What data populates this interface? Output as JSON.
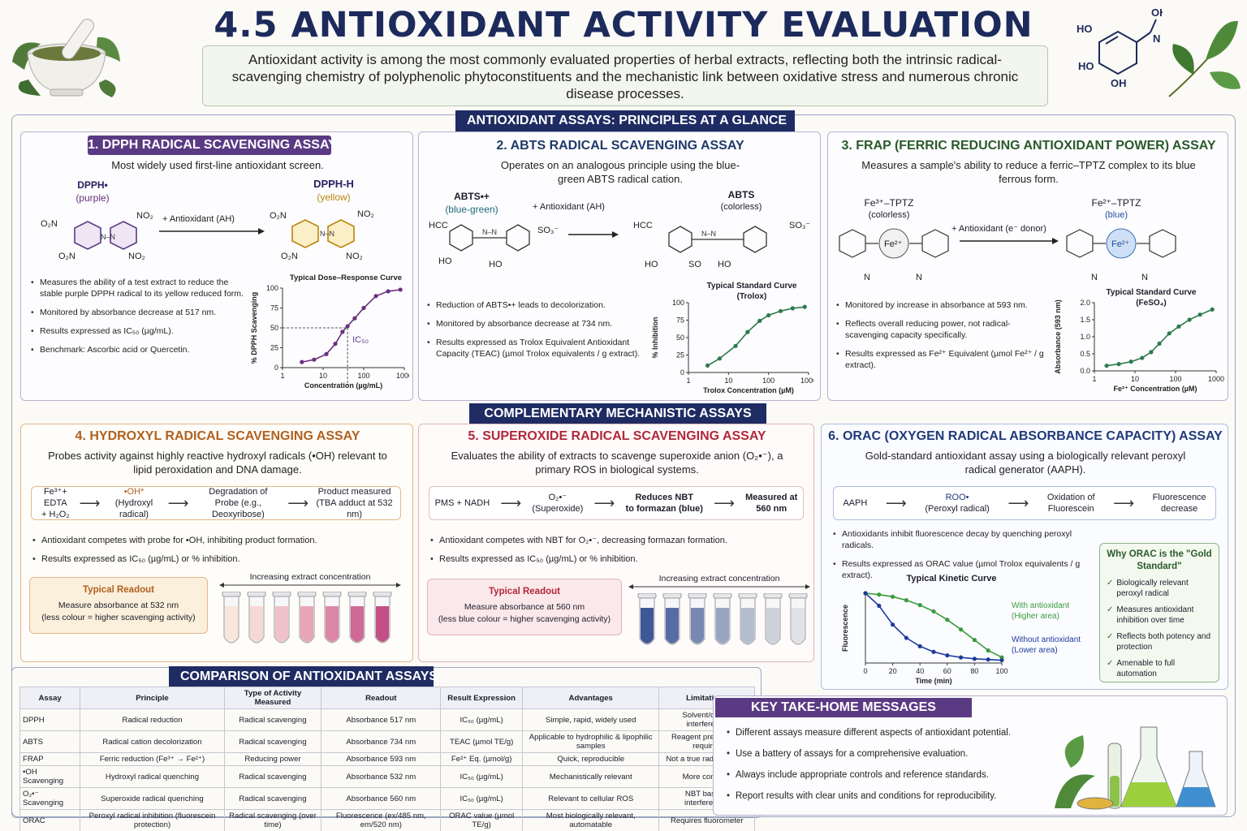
{
  "header": {
    "title": "4.5 ANTIOXIDANT ACTIVITY EVALUATION",
    "intro": "Antioxidant activity is among the most commonly evaluated properties of herbal extracts, reflecting both the intrinsic radical-scavenging chemistry of polyphenolic phytoconstituents and the mechanistic link between oxidative stress and numerous chronic disease processes.",
    "molecule_labels": [
      "OH",
      "HO",
      "N",
      "HO",
      "OH"
    ]
  },
  "sections": {
    "principles": "ANTIOXIDANT ASSAYS: PRINCIPLES AT A GLANCE",
    "complementary": "COMPLEMENTARY MECHANISTIC ASSAYS",
    "comparison": "COMPARISON OF ANTIOXIDANT ASSAYS",
    "takehome": "KEY TAKE-HOME MESSAGES"
  },
  "dpph": {
    "title": "1. DPPH RADICAL SCAVENGING ASSAY",
    "desc": "Most widely used first-line antioxidant screen.",
    "reactant": "DPPH•",
    "reactant_color": "(purple)",
    "product": "DPPH-H",
    "product_color": "(yellow)",
    "reagent": "+ Antioxidant (AH)",
    "no2": "NO₂",
    "o2n": "O₂N",
    "bullets": [
      "Measures the ability of a test extract to reduce the stable purple DPPH radical to its yellow reduced form.",
      "Monitored by absorbance decrease at 517 nm.",
      "Results expressed as IC₅₀ (µg/mL).",
      "Benchmark: Ascorbic acid or Quercetin."
    ],
    "chart_title": "Typical Dose–Response Curve",
    "ic50": "IC₅₀"
  },
  "abts": {
    "title": "2. ABTS RADICAL SCAVENGING ASSAY",
    "desc": "Operates on an analogous principle using the blue-green ABTS radical cation.",
    "reactant": "ABTS•+",
    "reactant_color": "(blue-green)",
    "product": "ABTS",
    "product_color": "(colorless)",
    "reagent": "+ Antioxidant (AH)",
    "labels": {
      "hcc": "HCC",
      "ho": "HO",
      "so3": "SO₃⁻",
      "so": "SO"
    },
    "bullets": [
      "Reduction of ABTS•+ leads to decolorization.",
      "Monitored by absorbance decrease at 734 nm.",
      "Results expressed as Trolox Equivalent Antioxidant Capacity (TEAC) (µmol Trolox equivalents / g extract)."
    ],
    "chart_title": "Typical Standard Curve",
    "chart_sub": "(Trolox)"
  },
  "frap": {
    "title": "3. FRAP (FERRIC REDUCING ANTIOXIDANT POWER) ASSAY",
    "desc": "Measures a sample's ability to reduce a ferric–TPTZ complex to its blue ferrous form.",
    "reactant": "Fe³⁺–TPTZ",
    "reactant_color": "(colorless)",
    "product": "Fe²⁺–TPTZ",
    "product_color": "(blue)",
    "reagent": "+ Antioxidant (e⁻ donor)",
    "fe": "Fe²⁺",
    "n": "N",
    "bullets": [
      "Monitored by increase in absorbance at 593 nm.",
      "Reflects overall reducing power, not radical-scavenging capacity specifically.",
      "Results expressed as Fe²⁺ Equivalent (µmol Fe²⁺ / g extract)."
    ],
    "chart_title": "Typical Standard Curve",
    "chart_sub": "(FeSO₄)"
  },
  "hydroxyl": {
    "title": "4. HYDROXYL RADICAL SCAVENGING ASSAY",
    "desc": "Probes activity against highly reactive hydroxyl radicals (•OH) relevant to lipid peroxidation and DNA damage.",
    "flow": [
      {
        "a": "Fe³⁺+ EDTA",
        "b": "+ H₂O₂"
      },
      {
        "a": "•OH*",
        "b": "(Hydroxyl radical)"
      },
      {
        "a": "Degradation of",
        "b": "Probe (e.g., Deoxyribose)"
      },
      {
        "a": "Product measured",
        "b": "(TBA adduct at 532 nm)"
      }
    ],
    "bullets": [
      "Antioxidant competes with probe for •OH, inhibiting product formation.",
      "Results expressed as IC₅₀ (µg/mL) or % inhibition."
    ],
    "readout_title": "Typical Readout",
    "readout_text": "Measure absorbance at 532 nm",
    "readout_note": "(less colour = higher scavenging activity)",
    "gradient": "Increasing extract concentration"
  },
  "superoxide": {
    "title": "5. SUPEROXIDE RADICAL SCAVENGING ASSAY",
    "desc": "Evaluates the ability of extracts to scavenge superoxide anion (O₂•⁻), a primary ROS in biological systems.",
    "flow": [
      {
        "a": "PMS + NADH",
        "b": ""
      },
      {
        "a": "O₂•⁻",
        "b": "(Superoxide)"
      },
      {
        "a": "Reduces NBT",
        "b": "to formazan (blue)"
      },
      {
        "a": "Measured at",
        "b": "560 nm"
      }
    ],
    "bullets": [
      "Antioxidant competes with NBT for O₂•⁻, decreasing formazan formation.",
      "Results expressed as IC₅₀ (µg/mL) or % inhibition."
    ],
    "readout_title": "Typical Readout",
    "readout_text": "Measure absorbance at 560 nm",
    "readout_note": "(less blue colour = higher scavenging activity)",
    "gradient": "Increasing extract concentration"
  },
  "orac": {
    "title": "6. ORAC (OXYGEN RADICAL ABSORBANCE CAPACITY) ASSAY",
    "desc": "Gold-standard antioxidant assay using a biologically relevant peroxyl radical generator (AAPH).",
    "flow": [
      {
        "a": "AAPH",
        "b": ""
      },
      {
        "a": "ROO•",
        "b": "(Peroxyl radical)"
      },
      {
        "a": "Oxidation of",
        "b": "Fluorescein"
      },
      {
        "a": "Fluorescence",
        "b": "decrease"
      }
    ],
    "bullets": [
      "Antioxidants inhibit fluorescence decay by quenching peroxyl radicals.",
      "Results expressed as ORAC value (µmol Trolox equivalents / g extract)."
    ],
    "chart_title": "Typical Kinetic Curve",
    "why_title": "Why ORAC is the \"Gold Standard\"",
    "why": [
      "Biologically relevant peroxyl radical",
      "Measures antioxidant inhibition over time",
      "Reflects both potency and protection",
      "Amenable to full automation"
    ]
  },
  "comparison": {
    "headers": [
      "Assay",
      "Principle",
      "Type of Activity Measured",
      "Readout",
      "Result Expression",
      "Advantages",
      "Limitations"
    ],
    "rows": [
      [
        "DPPH",
        "Radical reduction",
        "Radical scavenging",
        "Absorbance 517 nm",
        "IC₅₀ (µg/mL)",
        "Simple, rapid, widely used",
        "Solvent/colour interference"
      ],
      [
        "ABTS",
        "Radical cation decolorization",
        "Radical scavenging",
        "Absorbance 734 nm",
        "TEAC (µmol TE/g)",
        "Applicable to hydrophilic & lipophilic samples",
        "Reagent preparation required"
      ],
      [
        "FRAP",
        "Ferric reduction (Fe³⁺ → Fe²⁺)",
        "Reducing power",
        "Absorbance 593 nm",
        "Fe²⁺ Eq. (µmol/g)",
        "Quick, reproducible",
        "Not a true radical assay"
      ],
      [
        "•OH Scavenging",
        "Hydroxyl radical quenching",
        "Radical scavenging",
        "Absorbance 532 nm",
        "IC₅₀ (µg/mL)",
        "Mechanistically relevant",
        "More complex"
      ],
      [
        "O₂•⁻ Scavenging",
        "Superoxide radical quenching",
        "Radical scavenging",
        "Absorbance 560 nm",
        "IC₅₀ (µg/mL)",
        "Relevant to cellular ROS",
        "NBT based - interferences"
      ],
      [
        "ORAC",
        "Peroxyl radical inhibition (fluorescein protection)",
        "Radical scavenging (over time)",
        "Fluorescence (ex/485 nm, em/520 nm)",
        "ORAC value (µmol TE/g)",
        "Most biologically relevant, automatable",
        "Requires fluorometer"
      ]
    ]
  },
  "takehome": [
    "Different assays measure different aspects of antioxidant potential.",
    "Use a battery of assays for a comprehensive evaluation.",
    "Always include appropriate controls and reference standards.",
    "Report results with clear units and conditions for reproducibility."
  ],
  "chart_data": [
    {
      "type": "line",
      "title": "Typical Dose–Response Curve",
      "xlabel": "Concentration (µg/mL)",
      "ylabel": "% DPPH Scavenging",
      "x_scale": "log",
      "xlim": [
        1,
        1000
      ],
      "ylim": [
        0,
        100
      ],
      "x_ticks": [
        "1",
        "10",
        "100",
        "1000"
      ],
      "y_ticks": [
        "0",
        "25",
        "50",
        "75",
        "100"
      ],
      "x": [
        3,
        6,
        12,
        20,
        30,
        40,
        60,
        100,
        200,
        400,
        800
      ],
      "y": [
        7,
        10,
        17,
        30,
        45,
        52,
        62,
        75,
        90,
        96,
        98
      ],
      "annotation": "IC₅₀",
      "color": "#6a2f7e"
    },
    {
      "type": "line",
      "title": "Typical Standard Curve",
      "xlabel": "Trolox Concentration (µM)",
      "ylabel": "% Inhibition",
      "x_scale": "log",
      "xlim": [
        1,
        1000
      ],
      "ylim": [
        0,
        100
      ],
      "x_ticks": [
        "1",
        "10",
        "100",
        "1000"
      ],
      "y_ticks": [
        "0",
        "25",
        "50",
        "75",
        "100"
      ],
      "x": [
        3,
        6,
        15,
        30,
        60,
        100,
        200,
        400,
        800
      ],
      "y": [
        10,
        20,
        38,
        58,
        74,
        82,
        88,
        92,
        94
      ],
      "color": "#2e7a4e"
    },
    {
      "type": "line",
      "title": "Typical Standard Curve",
      "xlabel": "Fe²⁺ Concentration (µM)",
      "ylabel": "Absorbance (593 nm)",
      "x_scale": "log",
      "xlim": [
        1,
        1000
      ],
      "ylim": [
        0,
        2
      ],
      "x_ticks": [
        "1",
        "10",
        "100",
        "1000"
      ],
      "y_ticks": [
        "0.0",
        "0.5",
        "1.0",
        "1.5",
        "2.0"
      ],
      "x": [
        2,
        4,
        8,
        15,
        25,
        40,
        70,
        120,
        220,
        400,
        800
      ],
      "y": [
        0.15,
        0.2,
        0.27,
        0.38,
        0.55,
        0.8,
        1.1,
        1.3,
        1.5,
        1.65,
        1.8
      ],
      "color": "#2e7a4e"
    },
    {
      "type": "line",
      "title": "Typical Kinetic Curve",
      "xlabel": "Time (min)",
      "ylabel": "Fluorescence",
      "xlim": [
        0,
        100
      ],
      "x_ticks": [
        "0",
        "20",
        "40",
        "60",
        "80",
        "100"
      ],
      "series": [
        {
          "name": "With antioxidant (Higher area)",
          "x": [
            0,
            10,
            20,
            30,
            40,
            50,
            60,
            70,
            80,
            90,
            100
          ],
          "y": [
            1.0,
            0.98,
            0.95,
            0.9,
            0.83,
            0.74,
            0.62,
            0.48,
            0.33,
            0.18,
            0.08
          ],
          "color": "#3b9a3c"
        },
        {
          "name": "Without antioxidant (Lower area)",
          "x": [
            0,
            10,
            20,
            30,
            40,
            50,
            60,
            70,
            80,
            90,
            100
          ],
          "y": [
            1.0,
            0.82,
            0.55,
            0.36,
            0.24,
            0.16,
            0.11,
            0.08,
            0.06,
            0.05,
            0.04
          ],
          "color": "#1e3a9a"
        }
      ]
    }
  ],
  "tubes": {
    "hydroxyl": [
      "#f9e6dc",
      "#f6d9d6",
      "#efc1c8",
      "#e8a4b8",
      "#dc86a6",
      "#cf6995",
      "#c24f85"
    ],
    "superoxide": [
      "#3f5796",
      "#566ca4",
      "#7788b3",
      "#98a5c2",
      "#b4bccf",
      "#cdd2dc",
      "#dfe2e7"
    ]
  },
  "colors": {
    "navy": "#1f2c63",
    "dpph": "#5b3a84",
    "abts": "#1f3a6a",
    "frap": "#2a5a2c",
    "hydroxyl": "#b0601e",
    "superoxide": "#b0283a",
    "orac": "#1f3a7a"
  }
}
